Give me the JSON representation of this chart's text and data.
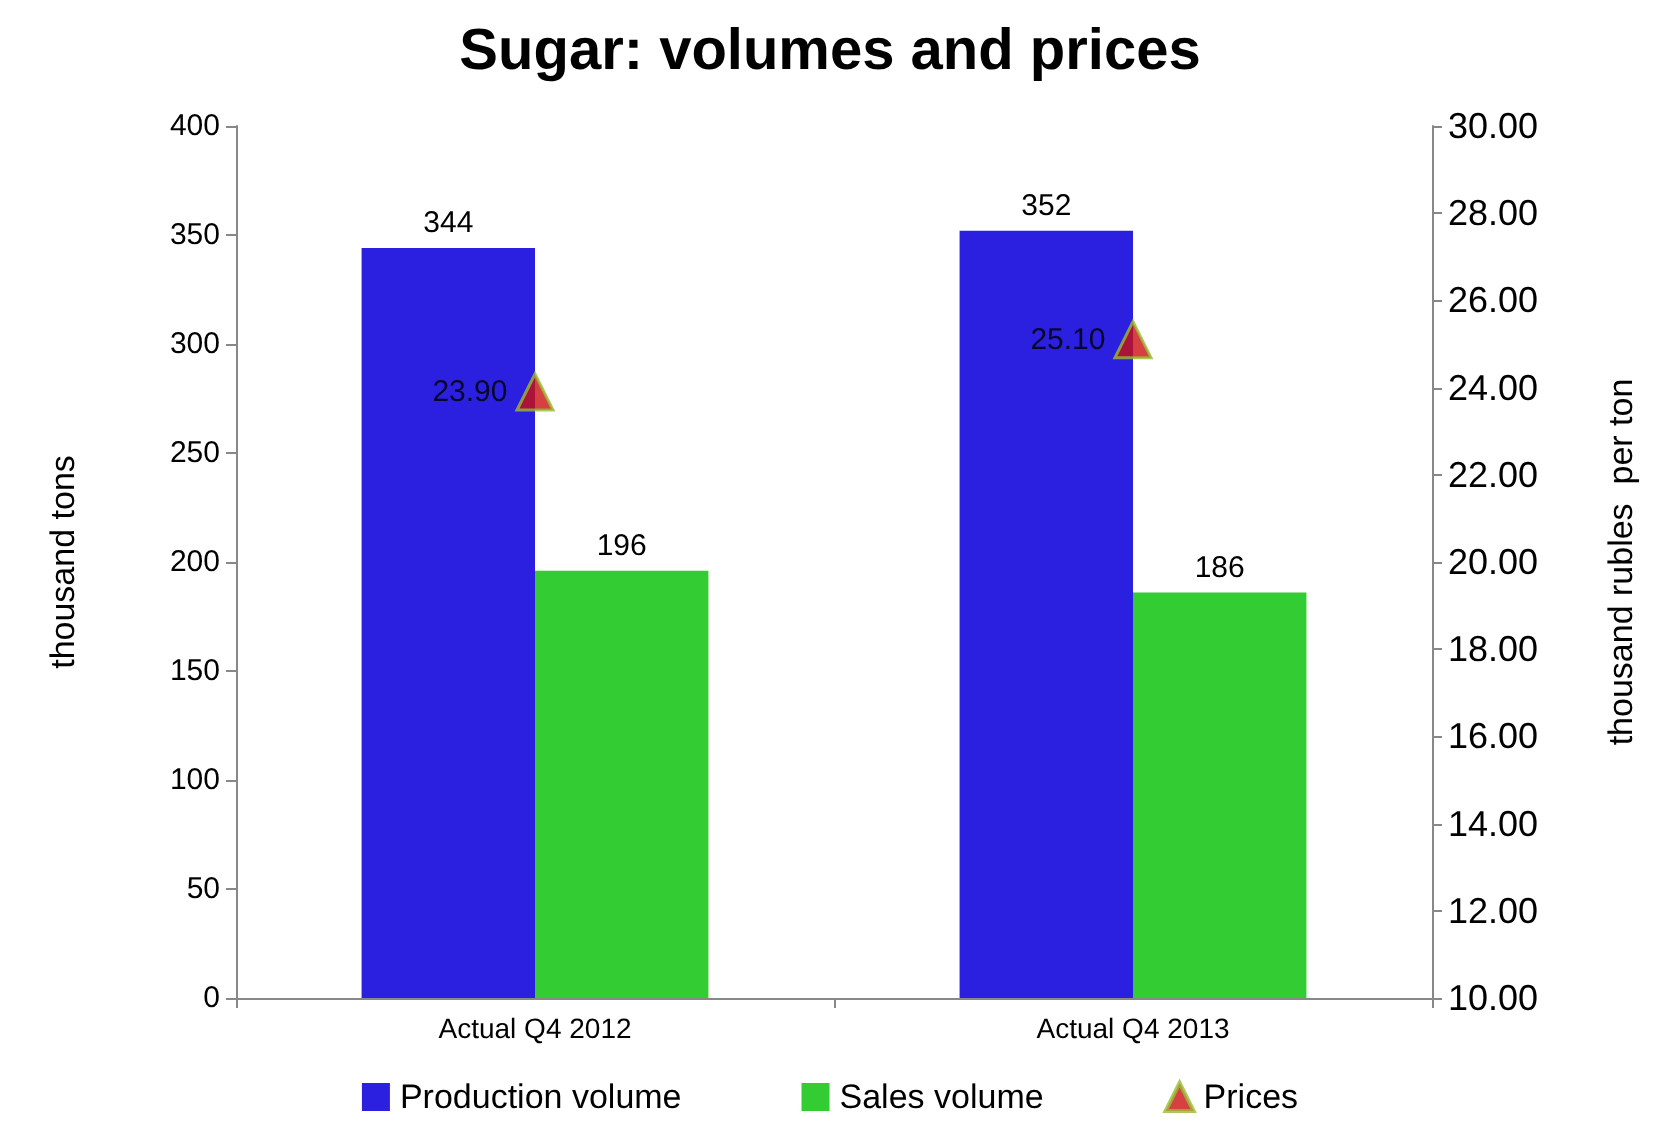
{
  "chart_data": {
    "type": "bar",
    "title": "Sugar: volumes and prices",
    "categories": [
      "Actual Q4 2012",
      "Actual Q4 2013"
    ],
    "series": [
      {
        "name": "Production volume",
        "color": "#2b20e0",
        "values": [
          344,
          352
        ]
      },
      {
        "name": "Sales volume",
        "color": "#33cc33",
        "values": [
          196,
          186
        ]
      },
      {
        "name": "Prices",
        "type": "scatter",
        "axis": "y2",
        "color": "#cc1010",
        "marker": "triangle",
        "value_labels": [
          "23.90",
          "25.10"
        ],
        "values": [
          23.9,
          25.1
        ]
      }
    ],
    "ylabel": "thousand tons",
    "y2label": "thousand rubles  per ton",
    "ylim": [
      0,
      400
    ],
    "yticks": [
      0,
      50,
      100,
      150,
      200,
      250,
      300,
      350,
      400
    ],
    "y2lim": [
      10,
      30
    ],
    "y2ticks": [
      {
        "value": 10,
        "label": "10.00"
      },
      {
        "value": 12,
        "label": "12.00"
      },
      {
        "value": 14,
        "label": "14.00"
      },
      {
        "value": 16,
        "label": "16.00"
      },
      {
        "value": 18,
        "label": "18.00"
      },
      {
        "value": 20,
        "label": "20.00"
      },
      {
        "value": 22,
        "label": "22.00"
      },
      {
        "value": 24,
        "label": "24.00"
      },
      {
        "value": 26,
        "label": "26.00"
      },
      {
        "value": 28,
        "label": "28.00"
      },
      {
        "value": 30,
        "label": "30.00"
      }
    ],
    "data_labels": true,
    "grid": false,
    "legend": "bottom"
  }
}
